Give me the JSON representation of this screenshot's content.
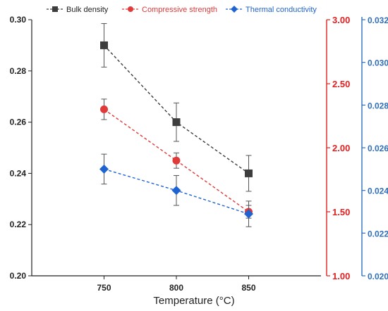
{
  "chart_data": {
    "type": "line",
    "x": [
      750,
      800,
      850
    ],
    "xlabel": "Temperature (°C)",
    "xticks": [
      "750",
      "800",
      "850"
    ],
    "legend_position": "top",
    "axes": {
      "left": {
        "range": [
          0.2,
          0.3
        ],
        "ticks": [
          "0.20",
          "0.22",
          "0.24",
          "0.26",
          "0.28",
          "0.30"
        ],
        "color": "#000000"
      },
      "right1": {
        "range": [
          1.0,
          3.0
        ],
        "ticks": [
          "1.00",
          "1.50",
          "2.00",
          "2.50",
          "3.00"
        ],
        "color": "#e02020"
      },
      "right2": {
        "range": [
          0.02,
          0.032
        ],
        "ticks": [
          "0.020",
          "0.022",
          "0.024",
          "0.026",
          "0.028",
          "0.030",
          "0.032"
        ],
        "color": "#2f6fbd"
      }
    },
    "series": [
      {
        "name": "Bulk density",
        "axis": "left",
        "color": "#3d3d3d",
        "marker": "square",
        "values": [
          0.29,
          0.26,
          0.24
        ],
        "errors": [
          0.0085,
          0.0075,
          0.007
        ]
      },
      {
        "name": "Compressive strength",
        "axis": "right1",
        "color": "#e03a3a",
        "marker": "circle",
        "values": [
          2.3,
          1.9,
          1.5
        ],
        "errors": [
          0.08,
          0.06,
          0.05
        ]
      },
      {
        "name": "Thermal conductivity",
        "axis": "right2",
        "color": "#1f63d1",
        "marker": "diamond",
        "values": [
          0.025,
          0.024,
          0.0229
        ],
        "errors": [
          0.0007,
          0.0007,
          0.0006
        ]
      }
    ]
  }
}
